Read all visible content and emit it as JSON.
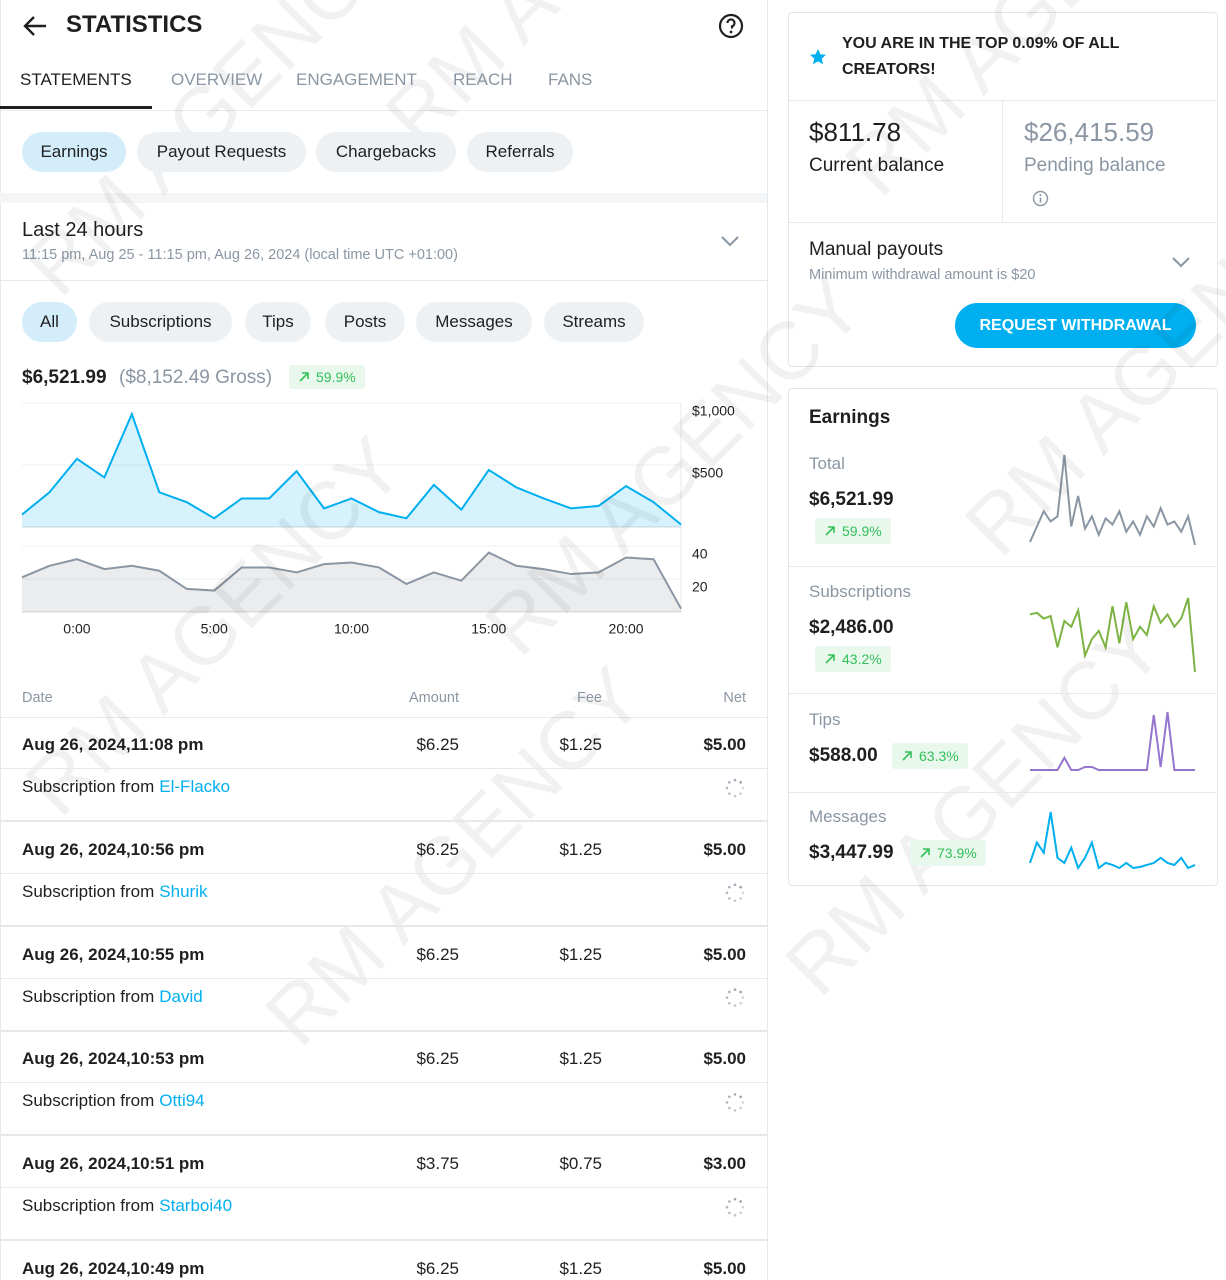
{
  "watermark": "RM AGENCY",
  "header": {
    "title": "STATISTICS"
  },
  "tabs": [
    "STATEMENTS",
    "OVERVIEW",
    "ENGAGEMENT",
    "REACH",
    "FANS"
  ],
  "subtabs": [
    "Earnings",
    "Payout Requests",
    "Chargebacks",
    "Referrals"
  ],
  "period": {
    "title": "Last 24 hours",
    "range": "11:15 pm, Aug 25 - 11:15 pm, Aug 26, 2024 (local time UTC +01:00)"
  },
  "filters": [
    "All",
    "Subscriptions",
    "Tips",
    "Posts",
    "Messages",
    "Streams"
  ],
  "summary": {
    "net": "$6,521.99",
    "gross": "($8,152.49 Gross)",
    "change": "59.9%"
  },
  "chart_data": [
    {
      "type": "area",
      "categories": [
        null,
        null,
        "0:00",
        null,
        null,
        null,
        null,
        "5:00",
        null,
        null,
        null,
        null,
        "10:00",
        null,
        null,
        null,
        null,
        "15:00",
        null,
        null,
        null,
        null,
        "20:00",
        null,
        null
      ],
      "series": [
        {
          "color": "#00aff0",
          "values": [
            100,
            280,
            550,
            400,
            910,
            280,
            200,
            70,
            230,
            230,
            450,
            150,
            230,
            120,
            70,
            340,
            140,
            460,
            320,
            230,
            150,
            170,
            330,
            200,
            20
          ]
        },
        {
          "color": "#8a96a3",
          "axis": "y2",
          "values": [
            21,
            28,
            32,
            26,
            28,
            25,
            14,
            13,
            27,
            27,
            24,
            29,
            30,
            27,
            17,
            24,
            19,
            36,
            28,
            26,
            23,
            24,
            33,
            32,
            2
          ]
        }
      ],
      "ylim": [
        0,
        1000
      ],
      "yticks": [
        {
          "value": 1000,
          "label": "$1,000"
        },
        {
          "value": 500,
          "label": "$500"
        }
      ],
      "y2lim": [
        0,
        40
      ],
      "y2ticks": [
        40,
        20
      ],
      "grid": true
    },
    {
      "type": "line",
      "color": "#8a96a3",
      "values": [
        5,
        20,
        35,
        25,
        30,
        90,
        20,
        50,
        18,
        30,
        12,
        28,
        22,
        35,
        15,
        25,
        12,
        30,
        20,
        38,
        22,
        25,
        15,
        30,
        2
      ]
    },
    {
      "type": "line",
      "color": "#7cb342",
      "values": [
        70,
        72,
        65,
        68,
        30,
        62,
        55,
        75,
        20,
        40,
        50,
        30,
        80,
        35,
        85,
        40,
        55,
        45,
        80,
        60,
        70,
        55,
        65,
        90,
        0
      ]
    },
    {
      "type": "line",
      "color": "#9575cd",
      "values": [
        0,
        0,
        0,
        0,
        0,
        20,
        0,
        0,
        5,
        5,
        0,
        0,
        0,
        0,
        0,
        0,
        0,
        0,
        90,
        5,
        95,
        0,
        0,
        0,
        0
      ]
    },
    {
      "type": "line",
      "color": "#00aff0",
      "values": [
        10,
        30,
        20,
        60,
        15,
        10,
        25,
        5,
        15,
        30,
        5,
        10,
        8,
        5,
        10,
        5,
        6,
        8,
        10,
        15,
        10,
        8,
        15,
        5,
        8
      ]
    }
  ],
  "table": {
    "columns": [
      "Date",
      "Amount",
      "Fee",
      "Net"
    ],
    "rows": [
      {
        "date": "Aug 26, 2024,11:08 pm",
        "amount": "$6.25",
        "fee": "$1.25",
        "net": "$5.00",
        "description": "Subscription from",
        "user": "El-Flacko"
      },
      {
        "date": "Aug 26, 2024,10:56 pm",
        "amount": "$6.25",
        "fee": "$1.25",
        "net": "$5.00",
        "description": "Subscription from",
        "user": "Shurik"
      },
      {
        "date": "Aug 26, 2024,10:55 pm",
        "amount": "$6.25",
        "fee": "$1.25",
        "net": "$5.00",
        "description": "Subscription from",
        "user": "David"
      },
      {
        "date": "Aug 26, 2024,10:53 pm",
        "amount": "$6.25",
        "fee": "$1.25",
        "net": "$5.00",
        "description": "Subscription from",
        "user": "Otti94"
      },
      {
        "date": "Aug 26, 2024,10:51 pm",
        "amount": "$3.75",
        "fee": "$0.75",
        "net": "$3.00",
        "description": "Subscription from",
        "user": "Starboi40"
      },
      {
        "date": "Aug 26, 2024,10:49 pm",
        "amount": "$6.25",
        "fee": "$1.25",
        "net": "$5.00"
      }
    ]
  },
  "banner": "YOU ARE IN THE TOP 0.09% OF ALL CREATORS!",
  "balances": [
    {
      "amount": "$811.78",
      "label": "Current balance"
    },
    {
      "amount": "$26,415.59",
      "label": "Pending balance"
    }
  ],
  "payouts": {
    "title": "Manual payouts",
    "note": "Minimum withdrawal amount is $20",
    "button": "REQUEST WITHDRAWAL"
  },
  "earnings_card": {
    "title": "Earnings",
    "items": [
      {
        "label": "Total",
        "amount": "$6,521.99",
        "change": "59.9%"
      },
      {
        "label": "Subscriptions",
        "amount": "$2,486.00",
        "change": "43.2%"
      },
      {
        "label": "Tips",
        "amount": "$588.00",
        "change": "63.3%"
      },
      {
        "label": "Messages",
        "amount": "$3,447.99",
        "change": "73.9%"
      }
    ]
  }
}
